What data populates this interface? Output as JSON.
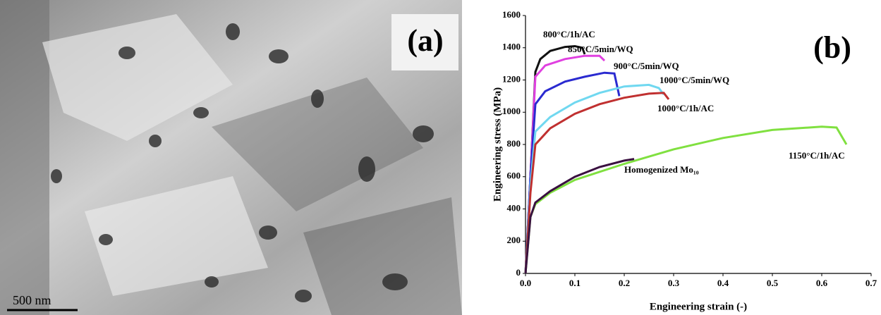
{
  "panel_a": {
    "label": "(a)",
    "scale_bar": "500 nm"
  },
  "chart_data": {
    "type": "line",
    "panel_label": "(b)",
    "xlabel": "Engineering strain (-)",
    "ylabel": "Engineering stress (MPa)",
    "xlim": [
      0,
      0.7
    ],
    "xticks": [
      {
        "value": 0,
        "label": "0.0"
      },
      0.1,
      0.2,
      0.3,
      0.4,
      0.5,
      0.6,
      0.7
    ],
    "ylim": [
      0,
      1600
    ],
    "yticks": [
      0,
      200,
      400,
      600,
      800,
      1000,
      1200,
      1400,
      1600
    ],
    "series": [
      {
        "name": "800°C/1h/AC",
        "color": "#111111",
        "x": [
          0,
          0.01,
          0.02,
          0.03,
          0.05,
          0.08,
          0.1,
          0.115,
          0.12
        ],
        "values": [
          0,
          600,
          1250,
          1330,
          1380,
          1405,
          1410,
          1400,
          1360
        ]
      },
      {
        "name": "850°C/5min/WQ",
        "color": "#e040e0",
        "x": [
          0,
          0.01,
          0.02,
          0.04,
          0.08,
          0.12,
          0.15,
          0.16
        ],
        "values": [
          0,
          600,
          1220,
          1290,
          1330,
          1350,
          1350,
          1320
        ]
      },
      {
        "name": "900°C/5min/WQ",
        "color": "#2a2ad0",
        "x": [
          0,
          0.01,
          0.02,
          0.04,
          0.08,
          0.12,
          0.16,
          0.18,
          0.19
        ],
        "values": [
          0,
          600,
          1050,
          1130,
          1190,
          1220,
          1245,
          1240,
          1100
        ]
      },
      {
        "name": "1000°C/5min/WQ",
        "color": "#70d8f0",
        "x": [
          0,
          0.01,
          0.02,
          0.05,
          0.1,
          0.15,
          0.2,
          0.25,
          0.27,
          0.28
        ],
        "values": [
          0,
          550,
          880,
          970,
          1060,
          1120,
          1160,
          1170,
          1150,
          1110
        ]
      },
      {
        "name": "1000°C/1h/AC",
        "color": "#c03030",
        "x": [
          0,
          0.01,
          0.02,
          0.05,
          0.1,
          0.15,
          0.2,
          0.25,
          0.28,
          0.29
        ],
        "values": [
          0,
          500,
          800,
          900,
          990,
          1050,
          1090,
          1115,
          1120,
          1080
        ]
      },
      {
        "name": "1150°C/1h/AC",
        "color": "#80e040",
        "x": [
          0,
          0.01,
          0.02,
          0.05,
          0.1,
          0.2,
          0.3,
          0.4,
          0.5,
          0.6,
          0.63,
          0.65
        ],
        "values": [
          0,
          350,
          430,
          500,
          580,
          680,
          770,
          840,
          890,
          910,
          905,
          800
        ]
      },
      {
        "name": "Homogenized Mo₁₀",
        "color": "#3a1040",
        "x": [
          0,
          0.01,
          0.02,
          0.05,
          0.1,
          0.15,
          0.2,
          0.22
        ],
        "values": [
          0,
          350,
          440,
          510,
          600,
          660,
          700,
          710
        ]
      }
    ]
  }
}
